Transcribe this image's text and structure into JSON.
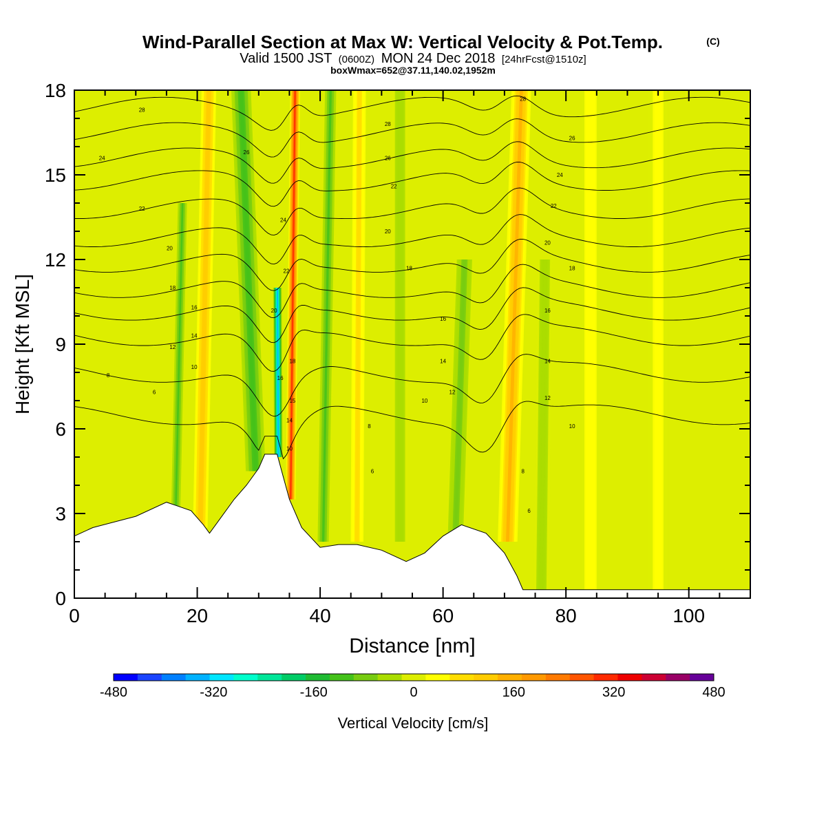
{
  "header": {
    "title": "Wind-Parallel Section at Max W: Vertical Velocity & Pot.Temp.",
    "copyright": "(C)",
    "valid_prefix": "Valid 1500 JST",
    "valid_utc": "(0600Z)",
    "valid_date": "MON 24 Dec 2018",
    "forecast": "[24hrFcst@1510z]",
    "boxinfo": "boxWmax=652@37.11,140.02,1952m"
  },
  "chart_data": {
    "type": "heatmap",
    "xlabel": "Distance [nm]",
    "ylabel": "Height [Kft MSL]",
    "xlim": [
      0,
      110
    ],
    "ylim": [
      0,
      18
    ],
    "xticks": [
      0,
      20,
      40,
      60,
      80,
      100
    ],
    "yticks": [
      0,
      3,
      6,
      9,
      12,
      15,
      18
    ],
    "colorbar": {
      "label": "Vertical Velocity [cm/s]",
      "range": [
        -480,
        480
      ],
      "ticks": [
        -480,
        -320,
        -160,
        0,
        160,
        320,
        480
      ],
      "colors": [
        "#0000ff",
        "#1a44ff",
        "#0080ff",
        "#00b2ff",
        "#00e6ff",
        "#00ffcc",
        "#00e699",
        "#00cc66",
        "#1fbb33",
        "#44c21a",
        "#77cc11",
        "#aadd00",
        "#ddee00",
        "#ffff00",
        "#ffdd00",
        "#ffcc00",
        "#ffb000",
        "#ff9900",
        "#ff7a00",
        "#ff5500",
        "#ff2a00",
        "#ee0000",
        "#cc0033",
        "#990066",
        "#660099"
      ]
    },
    "terrain": [
      [
        0,
        2.2
      ],
      [
        3,
        2.5
      ],
      [
        10,
        2.9
      ],
      [
        15,
        3.4
      ],
      [
        19,
        3.1
      ],
      [
        21,
        2.6
      ],
      [
        22,
        2.3
      ],
      [
        24,
        2.9
      ],
      [
        26,
        3.5
      ],
      [
        28,
        4.0
      ],
      [
        30,
        4.6
      ],
      [
        31,
        5.1
      ],
      [
        33,
        5.1
      ],
      [
        34,
        4.3
      ],
      [
        35,
        3.5
      ],
      [
        37,
        2.5
      ],
      [
        40,
        1.8
      ],
      [
        43,
        1.9
      ],
      [
        46,
        1.9
      ],
      [
        50,
        1.7
      ],
      [
        54,
        1.3
      ],
      [
        57,
        1.6
      ],
      [
        60,
        2.2
      ],
      [
        63,
        2.6
      ],
      [
        67,
        2.3
      ],
      [
        70,
        1.6
      ],
      [
        72,
        0.8
      ],
      [
        73,
        0.3
      ],
      [
        110,
        0.3
      ]
    ],
    "vv_bands": [
      {
        "x": 20.5,
        "width": 2.4,
        "tilt": 0.18,
        "value": 140,
        "ymin": 2.5,
        "ymax": 18
      },
      {
        "x": 16.5,
        "width": 1.8,
        "tilt": 0.2,
        "value": -110,
        "ymin": 3.0,
        "ymax": 14
      },
      {
        "x": 29.5,
        "width": 3.2,
        "tilt": -0.35,
        "value": -130,
        "ymin": 4.5,
        "ymax": 18
      },
      {
        "x": 33.2,
        "width": 1.4,
        "tilt": -0.05,
        "value": -380,
        "ymin": 5.0,
        "ymax": 11
      },
      {
        "x": 35.2,
        "width": 1.6,
        "tilt": 0.1,
        "value": 320,
        "ymin": 3.5,
        "ymax": 18
      },
      {
        "x": 40.5,
        "width": 2.2,
        "tilt": 0.15,
        "value": -110,
        "ymin": 2.0,
        "ymax": 18
      },
      {
        "x": 46,
        "width": 2.5,
        "tilt": 0.05,
        "value": 80,
        "ymin": 2.0,
        "ymax": 18
      },
      {
        "x": 53,
        "width": 2.5,
        "tilt": 0.0,
        "value": -60,
        "ymin": 2.0,
        "ymax": 18
      },
      {
        "x": 62,
        "width": 3.0,
        "tilt": 0.3,
        "value": -90,
        "ymin": 2.0,
        "ymax": 12
      },
      {
        "x": 70.5,
        "width": 3.2,
        "tilt": 0.28,
        "value": 170,
        "ymin": 2.0,
        "ymax": 18
      },
      {
        "x": 76,
        "width": 2.5,
        "tilt": 0.1,
        "value": -60,
        "ymin": 0.3,
        "ymax": 12
      },
      {
        "x": 84,
        "width": 3.0,
        "tilt": 0.0,
        "value": 50,
        "ymin": 0.3,
        "ymax": 18
      },
      {
        "x": 95,
        "width": 3.5,
        "tilt": 0.0,
        "value": 40,
        "ymin": 0.3,
        "ymax": 18
      }
    ],
    "isentropes": [
      {
        "level": 6,
        "base": 6.5
      },
      {
        "level": 8,
        "base": 8.0
      },
      {
        "level": 10,
        "base": 9.3
      },
      {
        "level": 12,
        "base": 10.2
      },
      {
        "level": 14,
        "base": 11.0
      },
      {
        "level": 16,
        "base": 11.9
      },
      {
        "level": 18,
        "base": 12.8
      },
      {
        "level": 20,
        "base": 13.8
      },
      {
        "level": 22,
        "base": 14.8
      },
      {
        "level": 24,
        "base": 15.6
      },
      {
        "level": 26,
        "base": 16.5
      },
      {
        "level": 28,
        "base": 17.4
      }
    ],
    "contour_labels": [
      {
        "text": "28",
        "x": 11,
        "y": 17.3
      },
      {
        "text": "24",
        "x": 4.5,
        "y": 15.6
      },
      {
        "text": "22",
        "x": 11,
        "y": 13.8
      },
      {
        "text": "20",
        "x": 15.5,
        "y": 12.4
      },
      {
        "text": "18",
        "x": 16,
        "y": 11.0
      },
      {
        "text": "16",
        "x": 19.5,
        "y": 10.3
      },
      {
        "text": "14",
        "x": 19.5,
        "y": 9.3
      },
      {
        "text": "12",
        "x": 16,
        "y": 8.9
      },
      {
        "text": "10",
        "x": 19.5,
        "y": 8.2
      },
      {
        "text": "8",
        "x": 5.5,
        "y": 7.9
      },
      {
        "text": "6",
        "x": 13,
        "y": 7.3
      },
      {
        "text": "26",
        "x": 28,
        "y": 15.8
      },
      {
        "text": "24",
        "x": 34,
        "y": 13.4
      },
      {
        "text": "22",
        "x": 34.5,
        "y": 11.6
      },
      {
        "text": "20",
        "x": 32.5,
        "y": 10.2
      },
      {
        "text": "18",
        "x": 35.5,
        "y": 8.4
      },
      {
        "text": "16",
        "x": 33.5,
        "y": 7.8
      },
      {
        "text": "15",
        "x": 35.5,
        "y": 7.0
      },
      {
        "text": "14",
        "x": 35,
        "y": 6.3
      },
      {
        "text": "10",
        "x": 35,
        "y": 5.3
      },
      {
        "text": "8",
        "x": 48,
        "y": 6.1
      },
      {
        "text": "6",
        "x": 48.5,
        "y": 4.5
      },
      {
        "text": "28",
        "x": 51,
        "y": 16.8
      },
      {
        "text": "26",
        "x": 51,
        "y": 15.6
      },
      {
        "text": "22",
        "x": 52,
        "y": 14.6
      },
      {
        "text": "20",
        "x": 51,
        "y": 13.0
      },
      {
        "text": "18",
        "x": 54.5,
        "y": 11.7
      },
      {
        "text": "16",
        "x": 60,
        "y": 9.9
      },
      {
        "text": "14",
        "x": 60,
        "y": 8.4
      },
      {
        "text": "12",
        "x": 61.5,
        "y": 7.3
      },
      {
        "text": "10",
        "x": 57,
        "y": 7.0
      },
      {
        "text": "8",
        "x": 73,
        "y": 4.5
      },
      {
        "text": "6",
        "x": 74,
        "y": 3.1
      },
      {
        "text": "28",
        "x": 73,
        "y": 17.7
      },
      {
        "text": "26",
        "x": 81,
        "y": 16.3
      },
      {
        "text": "24",
        "x": 79,
        "y": 15.0
      },
      {
        "text": "22",
        "x": 78,
        "y": 13.9
      },
      {
        "text": "20",
        "x": 77,
        "y": 12.6
      },
      {
        "text": "18",
        "x": 81,
        "y": 11.7
      },
      {
        "text": "16",
        "x": 77,
        "y": 10.2
      },
      {
        "text": "14",
        "x": 77,
        "y": 8.4
      },
      {
        "text": "12",
        "x": 77,
        "y": 7.1
      },
      {
        "text": "10",
        "x": 81,
        "y": 6.1
      }
    ]
  }
}
